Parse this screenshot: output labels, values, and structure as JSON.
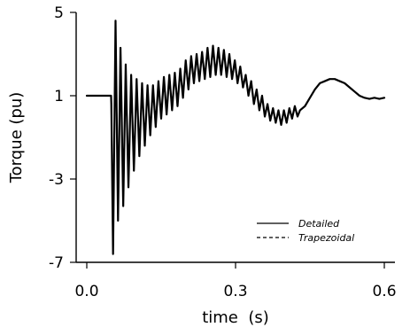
{
  "chart_data": {
    "type": "line",
    "title": "",
    "xlabel": "time  (s)",
    "ylabel": "Torque (pu)",
    "xlim": [
      0,
      0.6
    ],
    "ylim": [
      -7,
      5
    ],
    "xticks": [
      0.0,
      0.3,
      0.6
    ],
    "xtick_labels": [
      "0.0",
      "0.3",
      "0.6"
    ],
    "yticks": [
      5,
      1,
      -3,
      -7
    ],
    "ytick_labels": [
      "5",
      "1",
      "-3",
      "-7"
    ],
    "grid": false,
    "legend_position": "lower-right",
    "series": [
      {
        "name": "Detailed",
        "style": "solid",
        "color": "#000000",
        "x": [
          0,
          0.049,
          0.0495,
          0.053,
          0.058,
          0.063,
          0.068,
          0.0735,
          0.0785,
          0.084,
          0.0895,
          0.095,
          0.1005,
          0.106,
          0.1115,
          0.117,
          0.1225,
          0.128,
          0.1335,
          0.139,
          0.1445,
          0.15,
          0.1555,
          0.161,
          0.1665,
          0.172,
          0.1775,
          0.183,
          0.1885,
          0.194,
          0.1995,
          0.205,
          0.2105,
          0.216,
          0.2215,
          0.227,
          0.2325,
          0.238,
          0.2435,
          0.249,
          0.2545,
          0.26,
          0.2655,
          0.271,
          0.2765,
          0.282,
          0.2875,
          0.293,
          0.2985,
          0.304,
          0.3095,
          0.315,
          0.3205,
          0.326,
          0.3315,
          0.337,
          0.3425,
          0.348,
          0.3535,
          0.359,
          0.3645,
          0.37,
          0.3755,
          0.381,
          0.3865,
          0.392,
          0.3975,
          0.403,
          0.4085,
          0.414,
          0.4195,
          0.425,
          0.43,
          0.44,
          0.45,
          0.46,
          0.47,
          0.48,
          0.49,
          0.5,
          0.51,
          0.52,
          0.53,
          0.54,
          0.55,
          0.56,
          0.57,
          0.58,
          0.59,
          0.6
        ],
        "y": [
          1.0,
          1.0,
          0.6,
          -6.6,
          4.6,
          -5.0,
          3.3,
          -4.3,
          2.5,
          -3.4,
          2.0,
          -2.6,
          1.8,
          -1.9,
          1.6,
          -1.4,
          1.5,
          -0.9,
          1.5,
          -0.5,
          1.7,
          -0.1,
          1.9,
          0.1,
          2.0,
          0.3,
          2.1,
          0.5,
          2.3,
          0.9,
          2.7,
          1.3,
          2.9,
          1.6,
          3.0,
          1.7,
          3.1,
          1.8,
          3.3,
          1.9,
          3.4,
          2.0,
          3.3,
          2.0,
          3.2,
          1.9,
          3.0,
          1.8,
          2.7,
          1.6,
          2.4,
          1.4,
          2.0,
          1.0,
          1.7,
          0.6,
          1.3,
          0.3,
          1.0,
          0.0,
          0.6,
          -0.2,
          0.4,
          -0.3,
          0.3,
          -0.4,
          0.3,
          -0.3,
          0.4,
          -0.1,
          0.5,
          0.0,
          0.3,
          0.5,
          0.9,
          1.3,
          1.6,
          1.7,
          1.8,
          1.8,
          1.7,
          1.6,
          1.4,
          1.2,
          1.0,
          0.9,
          0.85,
          0.9,
          0.85,
          0.9
        ]
      },
      {
        "name": "Trapezoidal",
        "style": "dashed",
        "color": "#000000",
        "x": [
          0,
          0.049,
          0.0495,
          0.053,
          0.058,
          0.063,
          0.068,
          0.0735,
          0.0785,
          0.084,
          0.0895,
          0.095,
          0.1005,
          0.106,
          0.1115,
          0.117,
          0.1225,
          0.128,
          0.1335,
          0.139,
          0.1445,
          0.15,
          0.1555,
          0.161,
          0.1665,
          0.172,
          0.1775,
          0.183,
          0.1885,
          0.194,
          0.1995,
          0.205,
          0.2105,
          0.216,
          0.2215,
          0.227,
          0.2325,
          0.238,
          0.2435,
          0.249,
          0.2545,
          0.26,
          0.2655,
          0.271,
          0.2765,
          0.282,
          0.2875,
          0.293,
          0.2985,
          0.304,
          0.3095,
          0.315,
          0.3205,
          0.326,
          0.3315,
          0.337,
          0.3425,
          0.348,
          0.3535,
          0.359,
          0.3645,
          0.37,
          0.3755,
          0.381,
          0.3865,
          0.392,
          0.3975,
          0.403,
          0.4085,
          0.414,
          0.4195,
          0.425,
          0.43,
          0.44,
          0.45,
          0.46,
          0.47,
          0.48,
          0.49,
          0.5,
          0.51,
          0.52,
          0.53,
          0.54,
          0.55,
          0.56,
          0.57,
          0.58,
          0.59,
          0.6
        ],
        "y": [
          1.0,
          1.0,
          0.6,
          -6.6,
          4.6,
          -5.0,
          3.3,
          -4.3,
          2.5,
          -3.4,
          2.0,
          -2.6,
          1.8,
          -1.9,
          1.6,
          -1.4,
          1.5,
          -0.9,
          1.5,
          -0.5,
          1.7,
          -0.1,
          1.9,
          0.1,
          2.0,
          0.3,
          2.1,
          0.5,
          2.3,
          0.9,
          2.7,
          1.3,
          2.9,
          1.6,
          3.0,
          1.7,
          3.1,
          1.8,
          3.3,
          1.9,
          3.4,
          2.0,
          3.3,
          2.0,
          3.2,
          1.9,
          3.0,
          1.8,
          2.7,
          1.6,
          2.4,
          1.4,
          2.0,
          1.0,
          1.7,
          0.6,
          1.3,
          0.3,
          1.0,
          0.0,
          0.6,
          -0.2,
          0.4,
          -0.3,
          0.3,
          -0.4,
          0.3,
          -0.3,
          0.4,
          -0.1,
          0.5,
          0.0,
          0.3,
          0.5,
          0.9,
          1.3,
          1.6,
          1.7,
          1.8,
          1.8,
          1.7,
          1.6,
          1.4,
          1.2,
          1.0,
          0.9,
          0.85,
          0.9,
          0.85,
          0.9
        ]
      }
    ]
  }
}
